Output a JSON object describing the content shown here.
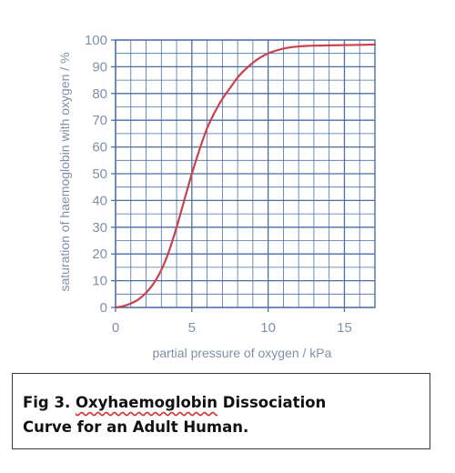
{
  "chart_data": {
    "type": "line",
    "title": "",
    "xlabel": "partial pressure of oxygen / kPa",
    "ylabel": "saturation of haemoglobin with oxygen / %",
    "xlim": [
      0,
      17
    ],
    "ylim": [
      0,
      100
    ],
    "x_ticks": [
      0,
      5,
      10,
      15
    ],
    "y_ticks": [
      0,
      10,
      20,
      30,
      40,
      50,
      60,
      70,
      80,
      90,
      100
    ],
    "grid": true,
    "grid_minor_x_step": 1,
    "grid_minor_y_step": 5,
    "legend": "none",
    "colors": {
      "line": "#c9414b",
      "grid": "#4a6fa5",
      "text": "#7f8fa8"
    },
    "series": [
      {
        "x": [
          0,
          0.5,
          1,
          1.5,
          2,
          2.5,
          3,
          3.5,
          4,
          4.5,
          5,
          5.5,
          6,
          6.5,
          7,
          7.5,
          8,
          8.5,
          9,
          9.5,
          10,
          10.5,
          11,
          11.5,
          12,
          12.5,
          13,
          14,
          15,
          16,
          17
        ],
        "y": [
          0,
          0.5,
          1.5,
          3,
          5.5,
          9,
          14,
          21,
          30,
          40,
          50,
          59,
          67,
          73,
          78,
          82,
          86,
          89,
          91.5,
          93.5,
          95,
          96,
          96.8,
          97.3,
          97.6,
          97.8,
          97.9,
          98,
          98.1,
          98.2,
          98.3
        ]
      }
    ]
  },
  "caption": {
    "prefix": "Fig 3. ",
    "flagged_word": "Oxyhaemoglobin",
    "line1_rest": " Dissociation",
    "line2": "Curve for an Adult Human."
  }
}
